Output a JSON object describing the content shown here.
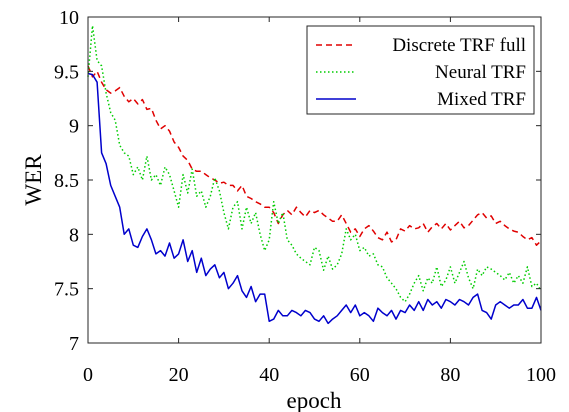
{
  "chart_data": {
    "type": "line",
    "xlabel": "epoch",
    "ylabel": "WER",
    "xlim": [
      0,
      100
    ],
    "ylim": [
      7,
      10
    ],
    "xticks": [
      0,
      20,
      40,
      60,
      80,
      100
    ],
    "yticks": [
      7,
      7.5,
      8,
      8.5,
      9,
      9.5,
      10
    ],
    "xtick_labels": [
      "0",
      "20",
      "40",
      "60",
      "80",
      "100"
    ],
    "ytick_labels": [
      "7",
      "7.5",
      "8",
      "8.5",
      "9",
      "9.5",
      "10"
    ],
    "grid": false,
    "legend_position": "top-right",
    "series": [
      {
        "name": "Discrete TRF full",
        "color": "#e00000",
        "style": "dashed",
        "x": [
          0,
          1,
          2,
          3,
          4,
          5,
          6,
          7,
          8,
          9,
          10,
          11,
          12,
          13,
          14,
          15,
          16,
          17,
          18,
          19,
          20,
          21,
          22,
          23,
          24,
          25,
          26,
          27,
          28,
          29,
          30,
          31,
          32,
          33,
          34,
          35,
          36,
          37,
          38,
          39,
          40,
          41,
          42,
          43,
          44,
          45,
          46,
          47,
          48,
          49,
          50,
          51,
          52,
          53,
          54,
          55,
          56,
          57,
          58,
          59,
          60,
          61,
          62,
          63,
          64,
          65,
          66,
          67,
          68,
          69,
          70,
          71,
          72,
          73,
          74,
          75,
          76,
          77,
          78,
          79,
          80,
          81,
          82,
          83,
          84,
          85,
          86,
          87,
          88,
          89,
          90,
          91,
          92,
          93,
          94,
          95,
          96,
          97,
          98,
          99,
          100
        ],
        "y": [
          9.55,
          9.45,
          9.5,
          9.4,
          9.33,
          9.3,
          9.32,
          9.35,
          9.27,
          9.22,
          9.25,
          9.2,
          9.24,
          9.15,
          9.16,
          9.05,
          8.97,
          9.0,
          8.95,
          8.85,
          8.8,
          8.72,
          8.68,
          8.6,
          8.58,
          8.58,
          8.55,
          8.52,
          8.5,
          8.47,
          8.48,
          8.45,
          8.45,
          8.4,
          8.45,
          8.35,
          8.33,
          8.3,
          8.28,
          8.25,
          8.25,
          8.2,
          8.1,
          8.18,
          8.22,
          8.18,
          8.25,
          8.2,
          8.16,
          8.22,
          8.2,
          8.22,
          8.18,
          8.15,
          8.12,
          8.12,
          8.18,
          8.1,
          8.02,
          8.05,
          7.98,
          8.05,
          8.08,
          8.03,
          7.97,
          7.95,
          8.02,
          7.93,
          7.95,
          8.05,
          8.03,
          8.08,
          8.05,
          8.06,
          8.1,
          8.02,
          8.07,
          8.1,
          8.05,
          8.1,
          8.04,
          8.08,
          8.12,
          8.06,
          8.08,
          8.13,
          8.18,
          8.2,
          8.15,
          8.17,
          8.1,
          8.12,
          8.08,
          8.05,
          8.03,
          8.02,
          7.98,
          7.95,
          7.97,
          7.9,
          7.94
        ]
      },
      {
        "name": "Neural TRF",
        "color": "#00cc00",
        "style": "dotted",
        "x": [
          0,
          1,
          2,
          3,
          4,
          5,
          6,
          7,
          8,
          9,
          10,
          11,
          12,
          13,
          14,
          15,
          16,
          17,
          18,
          19,
          20,
          21,
          22,
          23,
          24,
          25,
          26,
          27,
          28,
          29,
          30,
          31,
          32,
          33,
          34,
          35,
          36,
          37,
          38,
          39,
          40,
          41,
          42,
          43,
          44,
          45,
          46,
          47,
          48,
          49,
          50,
          51,
          52,
          53,
          54,
          55,
          56,
          57,
          58,
          59,
          60,
          61,
          62,
          63,
          64,
          65,
          66,
          67,
          68,
          69,
          70,
          71,
          72,
          73,
          74,
          75,
          76,
          77,
          78,
          79,
          80,
          81,
          82,
          83,
          84,
          85,
          86,
          87,
          88,
          89,
          90,
          91,
          92,
          93,
          94,
          95,
          96,
          97,
          98,
          99,
          100
        ],
        "y": [
          9.45,
          9.92,
          9.6,
          9.55,
          9.3,
          9.12,
          9.05,
          8.82,
          8.75,
          8.72,
          8.55,
          8.62,
          8.5,
          8.72,
          8.5,
          8.55,
          8.45,
          8.62,
          8.55,
          8.4,
          8.25,
          8.55,
          8.38,
          8.6,
          8.35,
          8.4,
          8.25,
          8.35,
          8.52,
          8.4,
          8.2,
          8.05,
          8.25,
          8.3,
          8.05,
          8.25,
          8.1,
          8.2,
          8.0,
          7.85,
          7.95,
          8.3,
          8.1,
          8.2,
          7.95,
          7.9,
          7.82,
          7.78,
          7.75,
          7.72,
          7.88,
          7.85,
          7.67,
          7.8,
          7.68,
          7.72,
          7.82,
          8.05,
          7.95,
          8.0,
          7.85,
          7.88,
          7.8,
          7.82,
          7.72,
          7.7,
          7.6,
          7.55,
          7.5,
          7.42,
          7.38,
          7.45,
          7.55,
          7.62,
          7.48,
          7.6,
          7.55,
          7.7,
          7.52,
          7.58,
          7.7,
          7.55,
          7.65,
          7.75,
          7.6,
          7.5,
          7.68,
          7.62,
          7.7,
          7.68,
          7.65,
          7.62,
          7.58,
          7.65,
          7.55,
          7.62,
          7.55,
          7.7,
          7.52,
          7.55,
          7.48
        ]
      },
      {
        "name": "Mixed TRF",
        "color": "#0000cc",
        "style": "solid",
        "x": [
          0,
          1,
          2,
          3,
          4,
          5,
          6,
          7,
          8,
          9,
          10,
          11,
          12,
          13,
          14,
          15,
          16,
          17,
          18,
          19,
          20,
          21,
          22,
          23,
          24,
          25,
          26,
          27,
          28,
          29,
          30,
          31,
          32,
          33,
          34,
          35,
          36,
          37,
          38,
          39,
          40,
          41,
          42,
          43,
          44,
          45,
          46,
          47,
          48,
          49,
          50,
          51,
          52,
          53,
          54,
          55,
          56,
          57,
          58,
          59,
          60,
          61,
          62,
          63,
          64,
          65,
          66,
          67,
          68,
          69,
          70,
          71,
          72,
          73,
          74,
          75,
          76,
          77,
          78,
          79,
          80,
          81,
          82,
          83,
          84,
          85,
          86,
          87,
          88,
          89,
          90,
          91,
          92,
          93,
          94,
          95,
          96,
          97,
          98,
          99,
          100
        ],
        "y": [
          9.48,
          9.47,
          9.4,
          8.75,
          8.65,
          8.45,
          8.35,
          8.25,
          8.0,
          8.05,
          7.9,
          7.88,
          7.98,
          8.05,
          7.95,
          7.82,
          7.85,
          7.8,
          7.92,
          7.78,
          7.82,
          7.95,
          7.75,
          7.85,
          7.65,
          7.78,
          7.62,
          7.68,
          7.72,
          7.6,
          7.65,
          7.5,
          7.55,
          7.62,
          7.48,
          7.42,
          7.52,
          7.38,
          7.45,
          7.45,
          7.2,
          7.22,
          7.3,
          7.25,
          7.25,
          7.3,
          7.28,
          7.25,
          7.3,
          7.28,
          7.22,
          7.2,
          7.25,
          7.18,
          7.22,
          7.25,
          7.3,
          7.35,
          7.28,
          7.35,
          7.25,
          7.28,
          7.25,
          7.2,
          7.32,
          7.28,
          7.25,
          7.3,
          7.22,
          7.3,
          7.28,
          7.35,
          7.3,
          7.38,
          7.3,
          7.4,
          7.35,
          7.38,
          7.32,
          7.4,
          7.38,
          7.35,
          7.4,
          7.38,
          7.35,
          7.42,
          7.45,
          7.3,
          7.28,
          7.22,
          7.35,
          7.38,
          7.35,
          7.32,
          7.35,
          7.35,
          7.4,
          7.32,
          7.32,
          7.42,
          7.3
        ]
      }
    ]
  }
}
